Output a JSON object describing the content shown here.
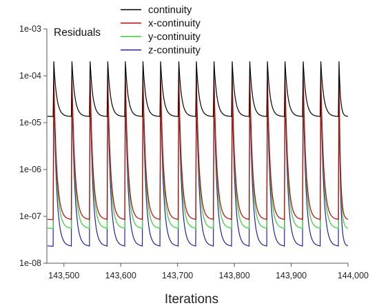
{
  "chart_data": {
    "type": "line",
    "title": "Residuals",
    "xlabel": "Iterations",
    "ylabel": "",
    "yscale": "log",
    "xlim": [
      143470,
      144000
    ],
    "ylim": [
      1e-08,
      0.001
    ],
    "grid": false,
    "legend_position": "top",
    "x_ticks": [
      "143,500",
      "143,600",
      "143,700",
      "143,800",
      "143,900",
      "144,000"
    ],
    "x_tick_values": [
      143500,
      143600,
      143700,
      143800,
      143900,
      144000
    ],
    "y_ticks": [
      "1e-08",
      "1e-07",
      "1e-06",
      "1e-05",
      "1e-04",
      "1e-03"
    ],
    "y_tick_values": [
      1e-08,
      1e-07,
      1e-06,
      1e-05,
      0.0001,
      0.001
    ],
    "cycle_start_iterations": [
      143481,
      143513,
      143545,
      143576,
      143607,
      143638,
      143669,
      143701,
      143732,
      143763,
      143795,
      143826,
      143857,
      143888,
      143920,
      143951,
      143983
    ],
    "series": [
      {
        "name": "continuity",
        "color": "#000000",
        "cycle_peak": 0.0002,
        "cycle_base": 1.35e-05
      },
      {
        "name": "x-continuity",
        "color": "#c00000",
        "cycle_peak": 0.0001,
        "cycle_base": 8.5e-08
      },
      {
        "name": "y-continuity",
        "color": "#33cc33",
        "cycle_peak": 8e-05,
        "cycle_base": 5.5e-08
      },
      {
        "name": "z-continuity",
        "color": "#1f1fa8",
        "cycle_peak": 5e-05,
        "cycle_base": 2.3e-08
      }
    ]
  }
}
